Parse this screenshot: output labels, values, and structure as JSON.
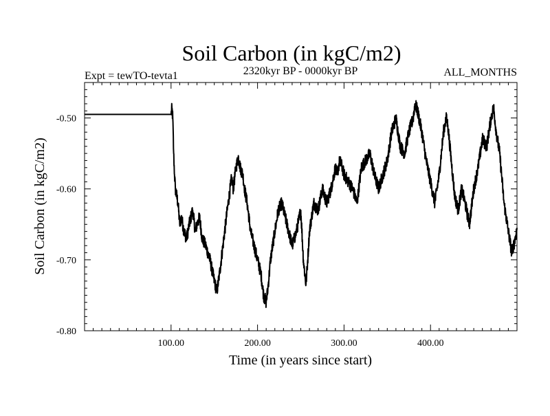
{
  "chart_data": {
    "type": "line",
    "title": "Soil Carbon (in kgC/m2)",
    "subtitle_left": "Expt = tewTO-tevta1",
    "subtitle_center": "2320kyr BP - 0000kyr BP",
    "subtitle_right": "ALL_MONTHS",
    "xlabel": "Time (in years since start)",
    "ylabel": "Soil Carbon (in kgC/m2)",
    "xlim": [
      0,
      500
    ],
    "ylim": [
      -0.8,
      -0.45
    ],
    "x_ticks": [
      100,
      200,
      300,
      400
    ],
    "x_tick_labels": [
      "100.00",
      "200.00",
      "300.00",
      "400.00"
    ],
    "y_ticks": [
      -0.5,
      -0.6,
      -0.7,
      -0.8
    ],
    "y_tick_labels": [
      "-0.50",
      "-0.60",
      "-0.70",
      "-0.80"
    ],
    "grid": false,
    "series": [
      {
        "name": "Soil Carbon",
        "x": [
          0,
          100,
          101,
          102,
          103,
          104,
          105,
          108,
          110,
          112,
          115,
          118,
          121,
          125,
          128,
          130,
          133,
          136,
          140,
          145,
          150,
          153,
          156,
          160,
          165,
          170,
          172,
          175,
          178,
          180,
          183,
          185,
          188,
          192,
          196,
          200,
          204,
          207,
          210,
          212,
          215,
          220,
          224,
          228,
          232,
          236,
          240,
          245,
          250,
          253,
          256,
          258,
          260,
          265,
          270,
          275,
          280,
          285,
          290,
          292,
          295,
          298,
          300,
          305,
          310,
          315,
          320,
          325,
          330,
          335,
          340,
          345,
          350,
          355,
          360,
          365,
          370,
          375,
          380,
          382,
          385,
          390,
          395,
          400,
          405,
          410,
          415,
          418,
          420,
          424,
          428,
          432,
          436,
          440,
          445,
          450,
          455,
          460,
          465,
          470,
          473,
          476,
          480,
          485,
          490,
          494,
          498,
          500
        ],
        "values": [
          -0.495,
          -0.495,
          -0.487,
          -0.5,
          -0.55,
          -0.58,
          -0.6,
          -0.62,
          -0.65,
          -0.64,
          -0.66,
          -0.67,
          -0.65,
          -0.63,
          -0.66,
          -0.65,
          -0.64,
          -0.67,
          -0.68,
          -0.7,
          -0.73,
          -0.745,
          -0.72,
          -0.68,
          -0.63,
          -0.585,
          -0.6,
          -0.57,
          -0.555,
          -0.57,
          -0.58,
          -0.6,
          -0.62,
          -0.66,
          -0.68,
          -0.7,
          -0.72,
          -0.75,
          -0.76,
          -0.74,
          -0.7,
          -0.66,
          -0.63,
          -0.62,
          -0.64,
          -0.66,
          -0.68,
          -0.66,
          -0.63,
          -0.7,
          -0.735,
          -0.7,
          -0.66,
          -0.62,
          -0.63,
          -0.6,
          -0.62,
          -0.6,
          -0.57,
          -0.58,
          -0.56,
          -0.57,
          -0.58,
          -0.59,
          -0.6,
          -0.62,
          -0.57,
          -0.56,
          -0.55,
          -0.58,
          -0.6,
          -0.58,
          -0.56,
          -0.52,
          -0.5,
          -0.54,
          -0.55,
          -0.52,
          -0.5,
          -0.48,
          -0.49,
          -0.52,
          -0.56,
          -0.59,
          -0.62,
          -0.58,
          -0.52,
          -0.5,
          -0.51,
          -0.56,
          -0.61,
          -0.63,
          -0.6,
          -0.62,
          -0.65,
          -0.6,
          -0.57,
          -0.53,
          -0.54,
          -0.5,
          -0.485,
          -0.52,
          -0.55,
          -0.62,
          -0.66,
          -0.69,
          -0.67,
          -0.655
        ]
      }
    ]
  }
}
